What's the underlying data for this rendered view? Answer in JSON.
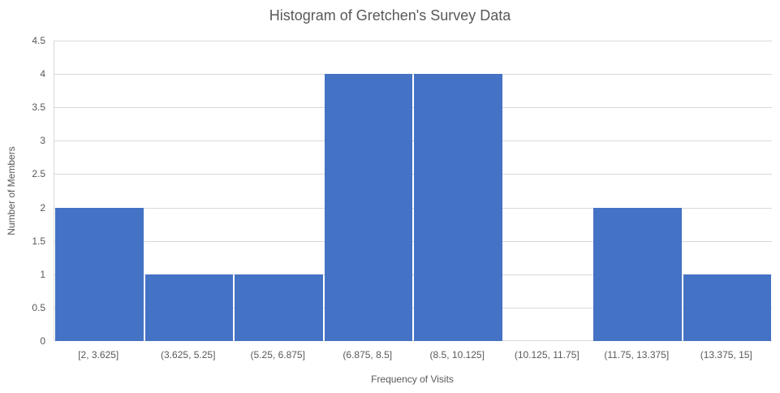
{
  "chart_data": {
    "type": "bar",
    "chart_kind": "histogram",
    "title": "Histogram of Gretchen's Survey Data",
    "xlabel": "Frequency of Visits",
    "ylabel": "Number of Members",
    "categories": [
      "[2, 3.625]",
      "(3.625, 5.25]",
      "(5.25, 6.875]",
      "(6.875, 8.5]",
      "(8.5, 10.125]",
      "(10.125, 11.75]",
      "(11.75, 13.375]",
      "(13.375, 15]"
    ],
    "values": [
      2,
      1,
      1,
      4,
      4,
      0,
      2,
      1
    ],
    "ylim": [
      0,
      4.5
    ],
    "ytick_step": 0.5,
    "grid": "horizontal",
    "legend": "none",
    "colors": {
      "bar": "#4472C4",
      "gridline": "#D9D9D9",
      "axis_line": "#D9D9D9",
      "text": "#595959",
      "background": "#FFFFFF"
    }
  }
}
